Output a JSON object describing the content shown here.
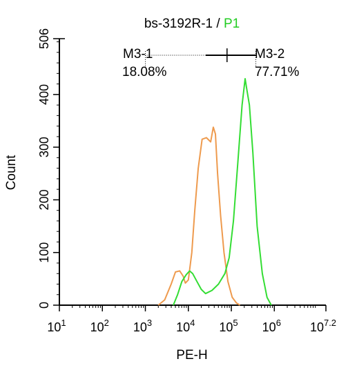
{
  "chart_data": {
    "type": "histogram",
    "title_prefix": "bs-3192R-1 / ",
    "title_gate": "P1",
    "xlabel": "PE-H",
    "ylabel": "Count",
    "x_scale": "log10",
    "xlim_log10": [
      1,
      7.2
    ],
    "ylim": [
      0,
      506
    ],
    "x_ticks": [
      {
        "base": "10",
        "exp": "1",
        "log": 1
      },
      {
        "base": "10",
        "exp": "2",
        "log": 2
      },
      {
        "base": "10",
        "exp": "3",
        "log": 3
      },
      {
        "base": "10",
        "exp": "4",
        "log": 4
      },
      {
        "base": "10",
        "exp": "5",
        "log": 5
      },
      {
        "base": "10",
        "exp": "6",
        "log": 6
      },
      {
        "base": "10",
        "exp": "7.2",
        "log": 7.2
      }
    ],
    "y_ticks": [
      {
        "label": "0",
        "value": 0
      },
      {
        "label": "100",
        "value": 100
      },
      {
        "label": "200",
        "value": 200
      },
      {
        "label": "300",
        "value": 300
      },
      {
        "label": "400",
        "value": 400
      },
      {
        "label": "506",
        "value": 506
      }
    ],
    "series": [
      {
        "color": "#ee9a4d",
        "points": [
          [
            3.3,
            0
          ],
          [
            3.45,
            10
          ],
          [
            3.6,
            40
          ],
          [
            3.7,
            63
          ],
          [
            3.8,
            65
          ],
          [
            3.88,
            55
          ],
          [
            3.93,
            42
          ],
          [
            4.0,
            48
          ],
          [
            4.08,
            100
          ],
          [
            4.15,
            180
          ],
          [
            4.23,
            260
          ],
          [
            4.32,
            315
          ],
          [
            4.42,
            318
          ],
          [
            4.52,
            310
          ],
          [
            4.58,
            338
          ],
          [
            4.63,
            325
          ],
          [
            4.68,
            250
          ],
          [
            4.75,
            170
          ],
          [
            4.83,
            100
          ],
          [
            4.92,
            45
          ],
          [
            5.02,
            15
          ],
          [
            5.12,
            4
          ],
          [
            5.2,
            0
          ]
        ]
      },
      {
        "color": "#33dd33",
        "points": [
          [
            3.65,
            0
          ],
          [
            3.75,
            20
          ],
          [
            3.85,
            45
          ],
          [
            3.95,
            58
          ],
          [
            4.03,
            65
          ],
          [
            4.1,
            60
          ],
          [
            4.2,
            45
          ],
          [
            4.3,
            30
          ],
          [
            4.4,
            22
          ],
          [
            4.55,
            28
          ],
          [
            4.7,
            40
          ],
          [
            4.85,
            60
          ],
          [
            4.95,
            90
          ],
          [
            5.05,
            160
          ],
          [
            5.15,
            270
          ],
          [
            5.25,
            380
          ],
          [
            5.32,
            430
          ],
          [
            5.36,
            410
          ],
          [
            5.42,
            380
          ],
          [
            5.5,
            290
          ],
          [
            5.6,
            150
          ],
          [
            5.72,
            60
          ],
          [
            5.83,
            15
          ],
          [
            5.93,
            0
          ]
        ]
      }
    ],
    "markers": [
      {
        "name": "M3-1",
        "percent": "18.08%",
        "from_log": 3.0,
        "to_log": 4.9
      },
      {
        "name": "M3-2",
        "percent": "77.71%",
        "from_log": 4.9,
        "to_log": 5.57
      }
    ],
    "colors": {
      "gate": "#22cc22",
      "axis": "#000000"
    }
  }
}
